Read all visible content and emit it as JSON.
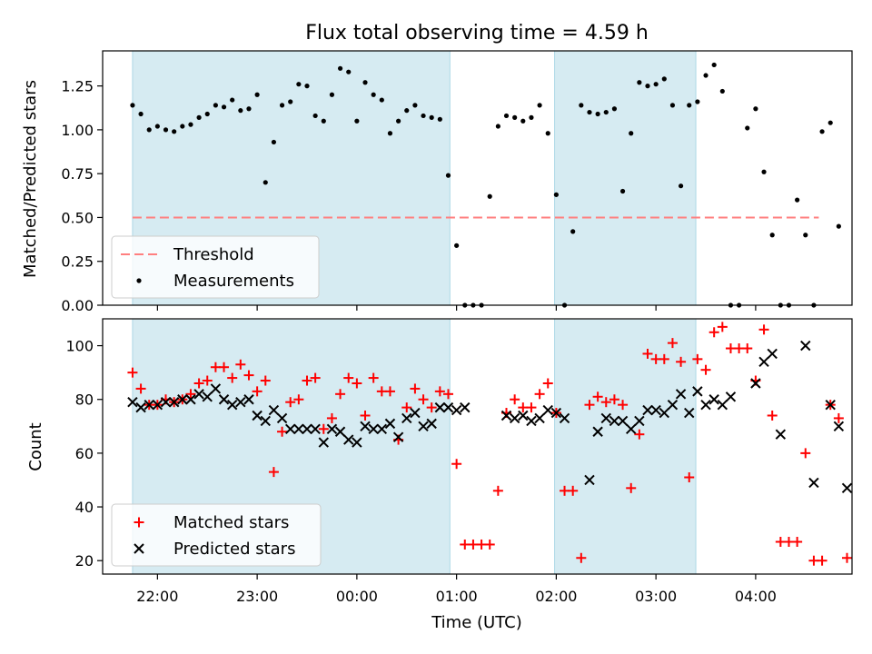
{
  "figure": {
    "title": "Flux total observing time = 4.59 h"
  },
  "chart_data": [
    {
      "type": "scatter",
      "ylabel": "Matched/Predicted stars",
      "xlim": [
        "21:27",
        "04:58"
      ],
      "ylim": [
        0,
        1.45
      ],
      "yticks": [
        "0.00",
        "0.25",
        "0.50",
        "0.75",
        "1.00",
        "1.25"
      ],
      "xticks": [
        "22:00",
        "23:00",
        "00:00",
        "01:00",
        "02:00",
        "03:00",
        "04:00"
      ],
      "shaded_intervals": [
        [
          "21:45",
          "00:56"
        ],
        [
          "01:59",
          "03:24"
        ]
      ],
      "shade_color": "#add8e6",
      "threshold": {
        "label": "Threshold",
        "value": 0.5,
        "x_range": [
          "21:45",
          "04:38"
        ],
        "color": "#ff7f7f"
      },
      "measurements_label": "Measurements",
      "measurements_color": "#000000",
      "legend": "lower-left",
      "series": [
        {
          "name": "Measurements",
          "points": [
            [
              "21:45",
              1.14
            ],
            [
              "21:50",
              1.09
            ],
            [
              "21:55",
              1.0
            ],
            [
              "22:00",
              1.02
            ],
            [
              "22:05",
              1.0
            ],
            [
              "22:10",
              0.99
            ],
            [
              "22:15",
              1.02
            ],
            [
              "22:20",
              1.03
            ],
            [
              "22:25",
              1.07
            ],
            [
              "22:30",
              1.09
            ],
            [
              "22:35",
              1.14
            ],
            [
              "22:40",
              1.13
            ],
            [
              "22:45",
              1.17
            ],
            [
              "22:50",
              1.11
            ],
            [
              "22:55",
              1.12
            ],
            [
              "23:00",
              1.2
            ],
            [
              "23:05",
              0.7
            ],
            [
              "23:10",
              0.93
            ],
            [
              "23:15",
              1.14
            ],
            [
              "23:20",
              1.16
            ],
            [
              "23:25",
              1.26
            ],
            [
              "23:30",
              1.25
            ],
            [
              "23:35",
              1.08
            ],
            [
              "23:40",
              1.05
            ],
            [
              "23:45",
              1.2
            ],
            [
              "23:50",
              1.35
            ],
            [
              "23:55",
              1.33
            ],
            [
              "00:00",
              1.05
            ],
            [
              "00:05",
              1.27
            ],
            [
              "00:10",
              1.2
            ],
            [
              "00:15",
              1.17
            ],
            [
              "00:20",
              0.98
            ],
            [
              "00:25",
              1.05
            ],
            [
              "00:30",
              1.11
            ],
            [
              "00:35",
              1.14
            ],
            [
              "00:40",
              1.08
            ],
            [
              "00:45",
              1.07
            ],
            [
              "00:50",
              1.06
            ],
            [
              "00:55",
              0.74
            ],
            [
              "01:00",
              0.34
            ],
            [
              "01:05",
              0.0
            ],
            [
              "01:10",
              0.0
            ],
            [
              "01:15",
              0.0
            ],
            [
              "01:20",
              0.62
            ],
            [
              "01:25",
              1.02
            ],
            [
              "01:30",
              1.08
            ],
            [
              "01:35",
              1.07
            ],
            [
              "01:40",
              1.05
            ],
            [
              "01:45",
              1.07
            ],
            [
              "01:50",
              1.14
            ],
            [
              "01:55",
              0.98
            ],
            [
              "02:00",
              0.63
            ],
            [
              "02:05",
              0.0
            ],
            [
              "02:10",
              0.42
            ],
            [
              "02:15",
              1.14
            ],
            [
              "02:20",
              1.1
            ],
            [
              "02:25",
              1.09
            ],
            [
              "02:30",
              1.1
            ],
            [
              "02:35",
              1.12
            ],
            [
              "02:40",
              0.65
            ],
            [
              "02:45",
              0.98
            ],
            [
              "02:50",
              1.27
            ],
            [
              "02:55",
              1.25
            ],
            [
              "03:00",
              1.26
            ],
            [
              "03:05",
              1.29
            ],
            [
              "03:10",
              1.14
            ],
            [
              "03:15",
              0.68
            ],
            [
              "03:20",
              1.14
            ],
            [
              "03:25",
              1.16
            ],
            [
              "03:30",
              1.31
            ],
            [
              "03:35",
              1.37
            ],
            [
              "03:40",
              1.22
            ],
            [
              "03:45",
              0.0
            ],
            [
              "03:50",
              0.0
            ],
            [
              "03:55",
              1.01
            ],
            [
              "04:00",
              1.12
            ],
            [
              "04:05",
              0.76
            ],
            [
              "04:10",
              0.4
            ],
            [
              "04:15",
              0.0
            ],
            [
              "04:20",
              0.0
            ],
            [
              "04:25",
              0.6
            ],
            [
              "04:30",
              0.4
            ],
            [
              "04:35",
              0.0
            ],
            [
              "04:40",
              0.99
            ],
            [
              "04:45",
              1.04
            ],
            [
              "04:50",
              0.45
            ]
          ]
        }
      ]
    },
    {
      "type": "scatter",
      "ylabel": "Count",
      "xlabel": "Time (UTC)",
      "xlim": [
        "21:27",
        "04:58"
      ],
      "ylim": [
        15,
        110
      ],
      "yticks": [
        "20",
        "40",
        "60",
        "80",
        "100"
      ],
      "xticks": [
        "22:00",
        "23:00",
        "00:00",
        "01:00",
        "02:00",
        "03:00",
        "04:00"
      ],
      "shaded_intervals": [
        [
          "21:45",
          "00:56"
        ],
        [
          "01:59",
          "03:24"
        ]
      ],
      "legend": "lower-left",
      "series": [
        {
          "name": "Matched stars",
          "marker": "plus",
          "color": "#ff0000",
          "points": [
            [
              "21:45",
              90
            ],
            [
              "21:50",
              84
            ],
            [
              "21:55",
              78
            ],
            [
              "22:00",
              78
            ],
            [
              "22:05",
              80
            ],
            [
              "22:10",
              79
            ],
            [
              "22:15",
              80
            ],
            [
              "22:20",
              82
            ],
            [
              "22:25",
              86
            ],
            [
              "22:30",
              87
            ],
            [
              "22:35",
              92
            ],
            [
              "22:40",
              92
            ],
            [
              "22:45",
              88
            ],
            [
              "22:50",
              93
            ],
            [
              "22:55",
              89
            ],
            [
              "23:00",
              83
            ],
            [
              "23:05",
              87
            ],
            [
              "23:10",
              53
            ],
            [
              "23:15",
              68
            ],
            [
              "23:20",
              79
            ],
            [
              "23:25",
              80
            ],
            [
              "23:30",
              87
            ],
            [
              "23:35",
              88
            ],
            [
              "23:40",
              69
            ],
            [
              "23:45",
              73
            ],
            [
              "23:50",
              82
            ],
            [
              "23:55",
              88
            ],
            [
              "00:00",
              86
            ],
            [
              "00:05",
              74
            ],
            [
              "00:10",
              88
            ],
            [
              "00:15",
              83
            ],
            [
              "00:20",
              83
            ],
            [
              "00:25",
              65
            ],
            [
              "00:30",
              77
            ],
            [
              "00:35",
              84
            ],
            [
              "00:40",
              80
            ],
            [
              "00:45",
              77
            ],
            [
              "00:50",
              83
            ],
            [
              "00:55",
              82
            ],
            [
              "01:00",
              56
            ],
            [
              "01:05",
              26
            ],
            [
              "01:10",
              26
            ],
            [
              "01:15",
              26
            ],
            [
              "01:20",
              26
            ],
            [
              "01:25",
              46
            ],
            [
              "01:30",
              75
            ],
            [
              "01:35",
              80
            ],
            [
              "01:40",
              77
            ],
            [
              "01:45",
              77
            ],
            [
              "01:50",
              82
            ],
            [
              "01:55",
              86
            ],
            [
              "02:00",
              75
            ],
            [
              "02:05",
              46
            ],
            [
              "02:10",
              46
            ],
            [
              "02:15",
              21
            ],
            [
              "02:20",
              78
            ],
            [
              "02:25",
              81
            ],
            [
              "02:30",
              79
            ],
            [
              "02:35",
              80
            ],
            [
              "02:40",
              78
            ],
            [
              "02:45",
              47
            ],
            [
              "02:50",
              67
            ],
            [
              "02:55",
              97
            ],
            [
              "03:00",
              95
            ],
            [
              "03:05",
              95
            ],
            [
              "03:10",
              101
            ],
            [
              "03:15",
              94
            ],
            [
              "03:20",
              51
            ],
            [
              "03:25",
              95
            ],
            [
              "03:30",
              91
            ],
            [
              "03:35",
              105
            ],
            [
              "03:40",
              107
            ],
            [
              "03:45",
              99
            ],
            [
              "03:50",
              99
            ],
            [
              "03:55",
              99
            ],
            [
              "04:00",
              87
            ],
            [
              "04:05",
              106
            ],
            [
              "04:10",
              74
            ],
            [
              "04:15",
              27
            ],
            [
              "04:20",
              27
            ],
            [
              "04:25",
              27
            ],
            [
              "04:30",
              60
            ],
            [
              "04:35",
              20
            ],
            [
              "04:40",
              20
            ],
            [
              "04:45",
              78
            ],
            [
              "04:50",
              73
            ],
            [
              "04:55",
              21
            ]
          ]
        },
        {
          "name": "Predicted stars",
          "marker": "cross",
          "color": "#000000",
          "points": [
            [
              "21:45",
              79
            ],
            [
              "21:50",
              77
            ],
            [
              "21:55",
              78
            ],
            [
              "22:00",
              78
            ],
            [
              "22:05",
              79
            ],
            [
              "22:10",
              79
            ],
            [
              "22:15",
              80
            ],
            [
              "22:20",
              80
            ],
            [
              "22:25",
              82
            ],
            [
              "22:30",
              81
            ],
            [
              "22:35",
              84
            ],
            [
              "22:40",
              80
            ],
            [
              "22:45",
              78
            ],
            [
              "22:50",
              79
            ],
            [
              "22:55",
              80
            ],
            [
              "23:00",
              74
            ],
            [
              "23:05",
              72
            ],
            [
              "23:10",
              76
            ],
            [
              "23:15",
              73
            ],
            [
              "23:20",
              69
            ],
            [
              "23:25",
              69
            ],
            [
              "23:30",
              69
            ],
            [
              "23:35",
              69
            ],
            [
              "23:40",
              64
            ],
            [
              "23:45",
              69
            ],
            [
              "23:50",
              68
            ],
            [
              "23:55",
              65
            ],
            [
              "00:00",
              64
            ],
            [
              "00:05",
              70
            ],
            [
              "00:10",
              69
            ],
            [
              "00:15",
              69
            ],
            [
              "00:20",
              71
            ],
            [
              "00:25",
              66
            ],
            [
              "00:30",
              73
            ],
            [
              "00:35",
              75
            ],
            [
              "00:40",
              70
            ],
            [
              "00:45",
              71
            ],
            [
              "00:50",
              77
            ],
            [
              "00:55",
              77
            ],
            [
              "01:00",
              76
            ],
            [
              "01:05",
              77
            ],
            [
              "01:30",
              74
            ],
            [
              "01:35",
              73
            ],
            [
              "01:40",
              74
            ],
            [
              "01:45",
              72
            ],
            [
              "01:50",
              73
            ],
            [
              "01:55",
              76
            ],
            [
              "02:00",
              75
            ],
            [
              "02:05",
              73
            ],
            [
              "02:20",
              50
            ],
            [
              "02:25",
              68
            ],
            [
              "02:30",
              73
            ],
            [
              "02:35",
              72
            ],
            [
              "02:40",
              72
            ],
            [
              "02:45",
              69
            ],
            [
              "02:50",
              72
            ],
            [
              "02:55",
              76
            ],
            [
              "03:00",
              76
            ],
            [
              "03:05",
              75
            ],
            [
              "03:10",
              78
            ],
            [
              "03:15",
              82
            ],
            [
              "03:20",
              75
            ],
            [
              "03:25",
              83
            ],
            [
              "03:30",
              78
            ],
            [
              "03:35",
              80
            ],
            [
              "03:40",
              78
            ],
            [
              "03:45",
              81
            ],
            [
              "04:00",
              86
            ],
            [
              "04:05",
              94
            ],
            [
              "04:10",
              97
            ],
            [
              "04:15",
              67
            ],
            [
              "04:30",
              100
            ],
            [
              "04:35",
              49
            ],
            [
              "04:45",
              78
            ],
            [
              "04:50",
              70
            ],
            [
              "04:55",
              47
            ]
          ]
        }
      ]
    }
  ]
}
